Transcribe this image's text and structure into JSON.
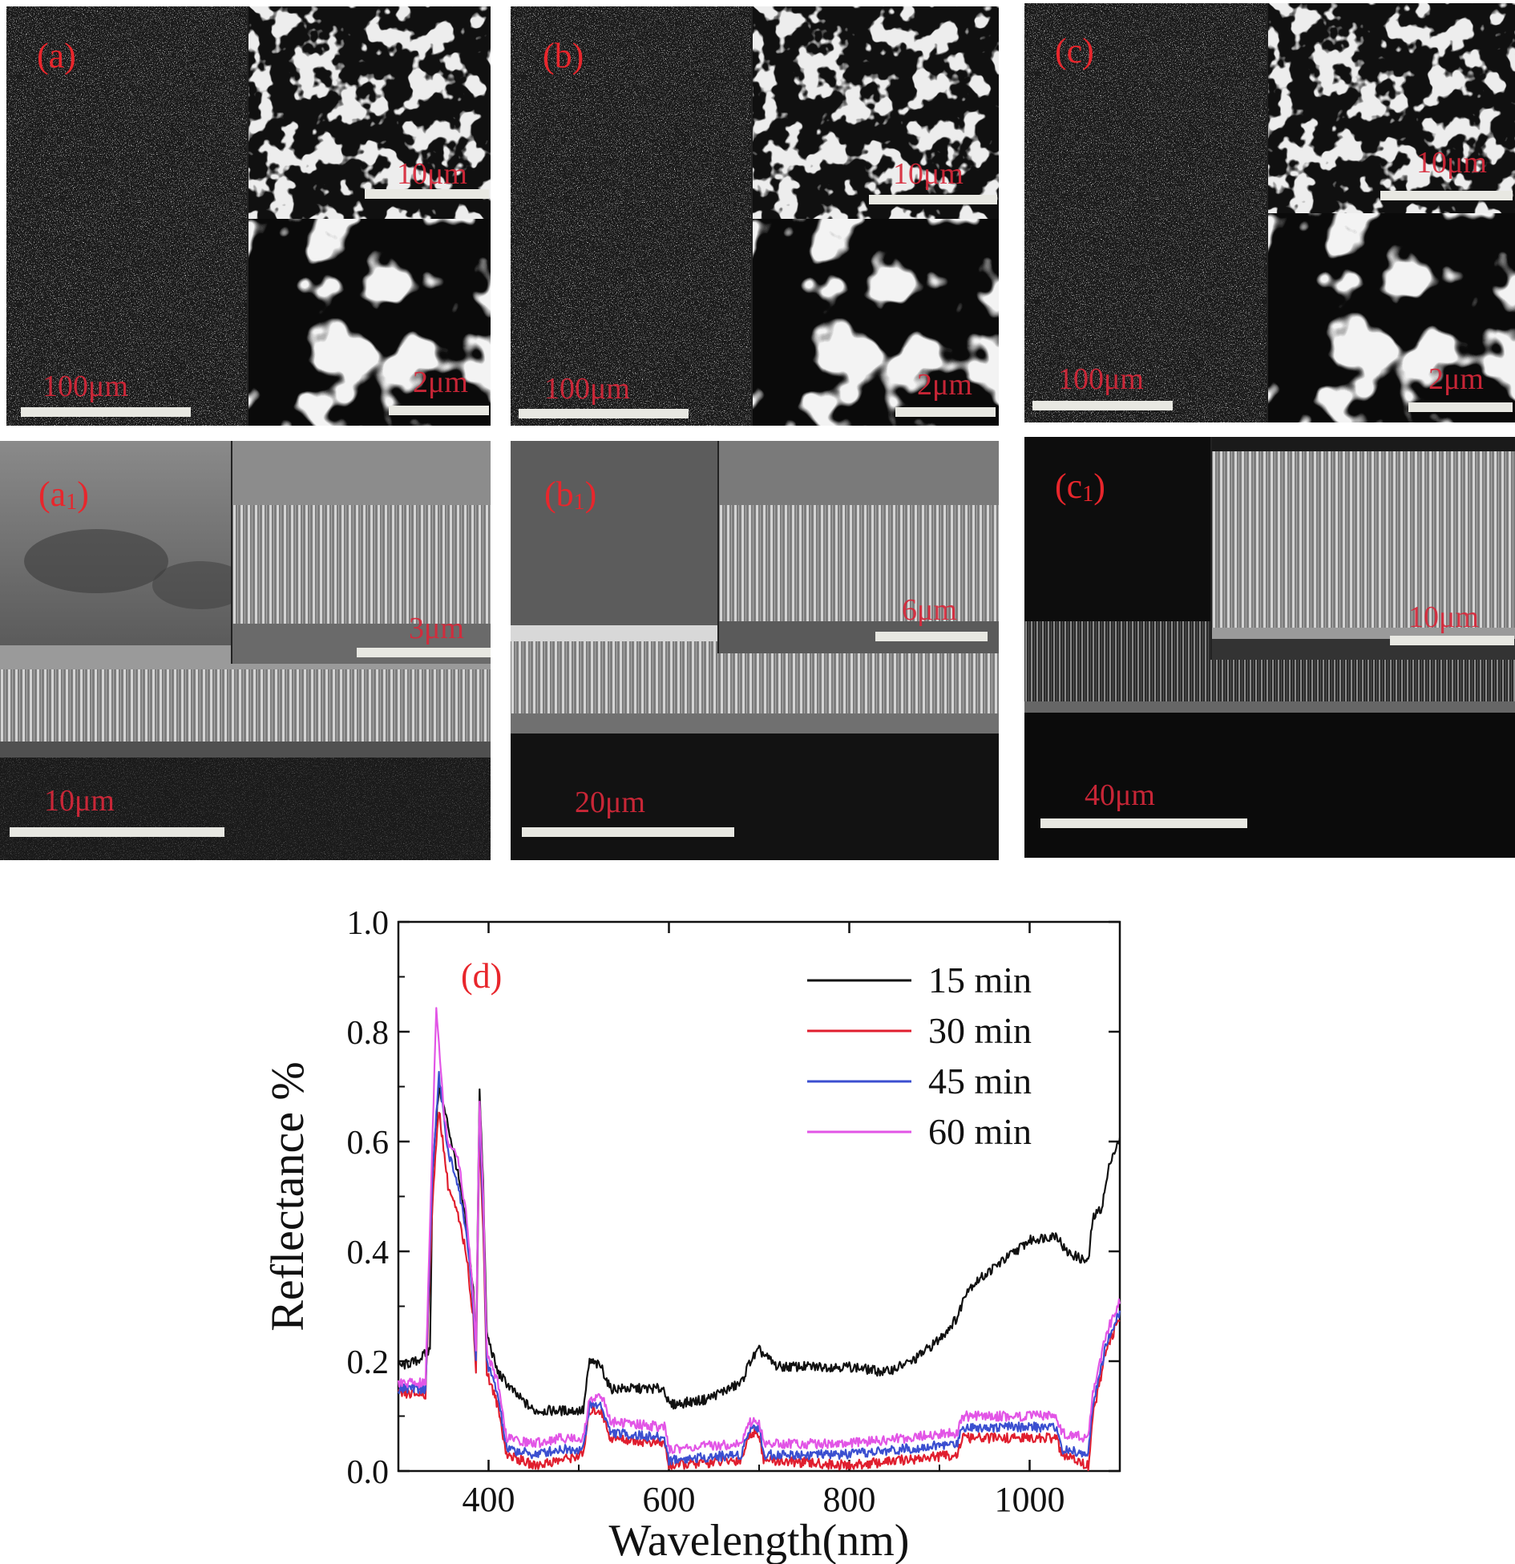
{
  "panels": {
    "a": {
      "label": "(a)",
      "main_scale": "100μm",
      "inset_top_scale": "10μm",
      "inset_bottom_scale": "2μm"
    },
    "b": {
      "label": "(b)",
      "main_scale": "100μm",
      "inset_top_scale": "10μm",
      "inset_bottom_scale": "2μm"
    },
    "c": {
      "label": "(c)",
      "main_scale": "100μm",
      "inset_top_scale": "10μm",
      "inset_bottom_scale": "2μm"
    },
    "a1": {
      "label": "(a",
      "label_sub": "1",
      "label_end": ")",
      "main_scale": "10μm",
      "inset_scale": "3μm"
    },
    "b1": {
      "label": "(b",
      "label_sub": "1",
      "label_end": ")",
      "main_scale": "20μm",
      "inset_scale": "6μm"
    },
    "c1": {
      "label": "(c",
      "label_sub": "1",
      "label_end": ")",
      "main_scale": "40μm",
      "inset_scale": "10μm"
    }
  },
  "chart_data": {
    "type": "line",
    "panel_label": "(d)",
    "xlabel": "Wavelength(nm)",
    "ylabel": "Reflectance %",
    "xlim": [
      300,
      1100
    ],
    "ylim": [
      0.0,
      1.0
    ],
    "xticks": [
      400,
      600,
      800,
      1000
    ],
    "yticks": [
      "0.0",
      "0.2",
      "0.4",
      "0.6",
      "0.8",
      "1.0"
    ],
    "legend_position": "top-right",
    "grid": false,
    "series": [
      {
        "name": "15 min",
        "color": "#111111",
        "points": [
          [
            300,
            0.19
          ],
          [
            320,
            0.2
          ],
          [
            335,
            0.22
          ],
          [
            338,
            0.55
          ],
          [
            345,
            0.7
          ],
          [
            355,
            0.63
          ],
          [
            365,
            0.55
          ],
          [
            375,
            0.45
          ],
          [
            383,
            0.33
          ],
          [
            386,
            0.22
          ],
          [
            390,
            0.7
          ],
          [
            394,
            0.52
          ],
          [
            398,
            0.25
          ],
          [
            410,
            0.18
          ],
          [
            430,
            0.14
          ],
          [
            450,
            0.11
          ],
          [
            480,
            0.11
          ],
          [
            505,
            0.11
          ],
          [
            512,
            0.2
          ],
          [
            525,
            0.19
          ],
          [
            535,
            0.15
          ],
          [
            560,
            0.15
          ],
          [
            595,
            0.15
          ],
          [
            600,
            0.12
          ],
          [
            640,
            0.13
          ],
          [
            680,
            0.16
          ],
          [
            690,
            0.2
          ],
          [
            700,
            0.22
          ],
          [
            720,
            0.19
          ],
          [
            760,
            0.19
          ],
          [
            800,
            0.19
          ],
          [
            840,
            0.18
          ],
          [
            870,
            0.2
          ],
          [
            900,
            0.24
          ],
          [
            920,
            0.28
          ],
          [
            930,
            0.33
          ],
          [
            960,
            0.37
          ],
          [
            1000,
            0.42
          ],
          [
            1030,
            0.43
          ],
          [
            1040,
            0.4
          ],
          [
            1065,
            0.38
          ],
          [
            1070,
            0.46
          ],
          [
            1080,
            0.48
          ],
          [
            1090,
            0.57
          ],
          [
            1100,
            0.6
          ]
        ]
      },
      {
        "name": "30 min",
        "color": "#e01e2e",
        "points": [
          [
            300,
            0.14
          ],
          [
            330,
            0.14
          ],
          [
            338,
            0.5
          ],
          [
            345,
            0.66
          ],
          [
            355,
            0.52
          ],
          [
            365,
            0.47
          ],
          [
            375,
            0.4
          ],
          [
            383,
            0.28
          ],
          [
            386,
            0.18
          ],
          [
            390,
            0.62
          ],
          [
            394,
            0.44
          ],
          [
            398,
            0.18
          ],
          [
            410,
            0.12
          ],
          [
            420,
            0.03
          ],
          [
            450,
            0.01
          ],
          [
            480,
            0.02
          ],
          [
            505,
            0.03
          ],
          [
            512,
            0.11
          ],
          [
            525,
            0.11
          ],
          [
            535,
            0.06
          ],
          [
            595,
            0.05
          ],
          [
            600,
            0.01
          ],
          [
            680,
            0.02
          ],
          [
            690,
            0.07
          ],
          [
            700,
            0.07
          ],
          [
            705,
            0.02
          ],
          [
            800,
            0.01
          ],
          [
            920,
            0.03
          ],
          [
            925,
            0.06
          ],
          [
            1000,
            0.06
          ],
          [
            1030,
            0.06
          ],
          [
            1035,
            0.03
          ],
          [
            1065,
            0.01
          ],
          [
            1070,
            0.1
          ],
          [
            1085,
            0.22
          ],
          [
            1100,
            0.28
          ]
        ]
      },
      {
        "name": "45 min",
        "color": "#3b4fd0",
        "points": [
          [
            300,
            0.15
          ],
          [
            330,
            0.15
          ],
          [
            338,
            0.55
          ],
          [
            345,
            0.72
          ],
          [
            355,
            0.58
          ],
          [
            365,
            0.53
          ],
          [
            375,
            0.44
          ],
          [
            383,
            0.3
          ],
          [
            386,
            0.2
          ],
          [
            390,
            0.66
          ],
          [
            394,
            0.47
          ],
          [
            398,
            0.2
          ],
          [
            410,
            0.14
          ],
          [
            420,
            0.04
          ],
          [
            450,
            0.03
          ],
          [
            480,
            0.04
          ],
          [
            505,
            0.04
          ],
          [
            512,
            0.12
          ],
          [
            525,
            0.12
          ],
          [
            535,
            0.07
          ],
          [
            595,
            0.06
          ],
          [
            600,
            0.02
          ],
          [
            680,
            0.03
          ],
          [
            690,
            0.08
          ],
          [
            700,
            0.08
          ],
          [
            705,
            0.03
          ],
          [
            800,
            0.03
          ],
          [
            920,
            0.05
          ],
          [
            925,
            0.08
          ],
          [
            1000,
            0.08
          ],
          [
            1030,
            0.08
          ],
          [
            1035,
            0.04
          ],
          [
            1065,
            0.03
          ],
          [
            1070,
            0.12
          ],
          [
            1085,
            0.23
          ],
          [
            1100,
            0.29
          ]
        ]
      },
      {
        "name": "60 min",
        "color": "#e255e6",
        "points": [
          [
            300,
            0.16
          ],
          [
            330,
            0.16
          ],
          [
            338,
            0.62
          ],
          [
            342,
            0.85
          ],
          [
            350,
            0.66
          ],
          [
            355,
            0.6
          ],
          [
            365,
            0.58
          ],
          [
            375,
            0.47
          ],
          [
            383,
            0.32
          ],
          [
            386,
            0.22
          ],
          [
            390,
            0.68
          ],
          [
            394,
            0.5
          ],
          [
            398,
            0.22
          ],
          [
            410,
            0.16
          ],
          [
            420,
            0.06
          ],
          [
            450,
            0.05
          ],
          [
            480,
            0.06
          ],
          [
            505,
            0.06
          ],
          [
            512,
            0.13
          ],
          [
            525,
            0.14
          ],
          [
            535,
            0.09
          ],
          [
            595,
            0.08
          ],
          [
            600,
            0.04
          ],
          [
            680,
            0.05
          ],
          [
            690,
            0.09
          ],
          [
            700,
            0.09
          ],
          [
            705,
            0.05
          ],
          [
            800,
            0.05
          ],
          [
            920,
            0.07
          ],
          [
            925,
            0.1
          ],
          [
            1000,
            0.1
          ],
          [
            1030,
            0.1
          ],
          [
            1035,
            0.07
          ],
          [
            1065,
            0.06
          ],
          [
            1070,
            0.14
          ],
          [
            1085,
            0.25
          ],
          [
            1100,
            0.31
          ]
        ]
      }
    ]
  }
}
